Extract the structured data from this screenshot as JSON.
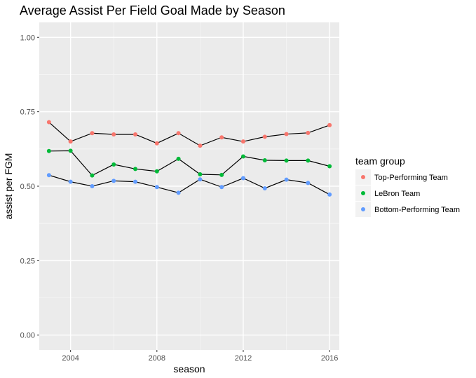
{
  "chart_data": {
    "type": "line",
    "title": "Average Assist Per Field Goal Made by Season",
    "xlabel": "season",
    "ylabel": "assist per FGM",
    "xlim": [
      2002.55,
      2016.45
    ],
    "ylim": [
      -0.05,
      1.05
    ],
    "xticks": [
      2004,
      2008,
      2012,
      2016
    ],
    "xtick_labels": [
      "2004",
      "2008",
      "2012",
      "2016"
    ],
    "yticks": [
      0.0,
      0.25,
      0.5,
      0.75,
      1.0
    ],
    "ytick_labels": [
      "0.00",
      "0.25",
      "0.50",
      "0.75",
      "1.00"
    ],
    "grid": true,
    "legend_title": "team group",
    "legend_position": "right",
    "x": [
      2003,
      2004,
      2005,
      2006,
      2007,
      2008,
      2009,
      2010,
      2011,
      2012,
      2013,
      2014,
      2015,
      2016
    ],
    "series": [
      {
        "name": "Top-Performing Team",
        "color": "#F8766D",
        "values": [
          0.715,
          0.65,
          0.678,
          0.674,
          0.674,
          0.644,
          0.678,
          0.636,
          0.664,
          0.65,
          0.666,
          0.675,
          0.679,
          0.705
        ]
      },
      {
        "name": "LeBron Team",
        "color": "#00BA38",
        "values": [
          0.618,
          0.619,
          0.536,
          0.573,
          0.558,
          0.55,
          0.592,
          0.54,
          0.538,
          0.6,
          0.587,
          0.586,
          0.586,
          0.567
        ]
      },
      {
        "name": "Bottom-Performing Team",
        "color": "#619CFF",
        "values": [
          0.537,
          0.515,
          0.5,
          0.518,
          0.515,
          0.497,
          0.478,
          0.523,
          0.497,
          0.527,
          0.493,
          0.522,
          0.511,
          0.472
        ]
      }
    ]
  }
}
